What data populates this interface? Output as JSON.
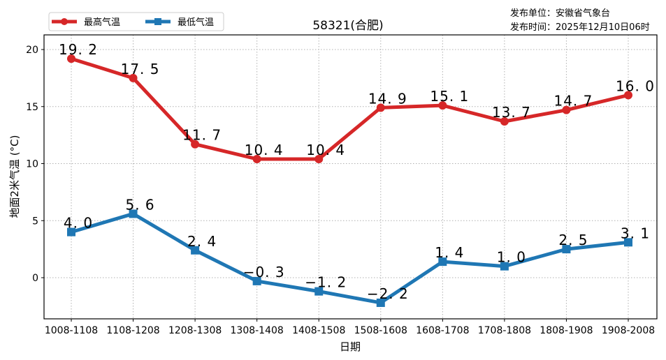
{
  "header": {
    "title": "58321(合肥)",
    "publisher": "发布单位：安徽省气象台",
    "publish_time": "发布时间：2025年12月10日06时"
  },
  "legend": {
    "items": [
      {
        "label": "最高气温",
        "color": "#d62728",
        "marker": "circle"
      },
      {
        "label": "最低气温",
        "color": "#1f77b4",
        "marker": "square"
      }
    ]
  },
  "chart_data": {
    "type": "line",
    "title": "58321(合肥)",
    "xlabel": "日期",
    "ylabel": "地面2米气温 (°C)",
    "categories": [
      "1008-1108",
      "1108-1208",
      "1208-1308",
      "1308-1408",
      "1408-1508",
      "1508-1608",
      "1608-1708",
      "1708-1808",
      "1808-1908",
      "1908-2008"
    ],
    "series": [
      {
        "name": "最高气温",
        "color": "#d62728",
        "marker": "circle",
        "values": [
          19.2,
          17.5,
          11.7,
          10.4,
          10.4,
          14.9,
          15.1,
          13.7,
          14.7,
          16.0
        ]
      },
      {
        "name": "最低气温",
        "color": "#1f77b4",
        "marker": "square",
        "values": [
          4.0,
          5.6,
          2.4,
          -0.3,
          -1.2,
          -2.2,
          1.4,
          1.0,
          2.5,
          3.1
        ]
      }
    ],
    "yticks": [
      0,
      5,
      10,
      15,
      20
    ],
    "ylim": [
      -3.6,
      21.3
    ],
    "grid": true,
    "legend_position": "upper-left-outside"
  }
}
